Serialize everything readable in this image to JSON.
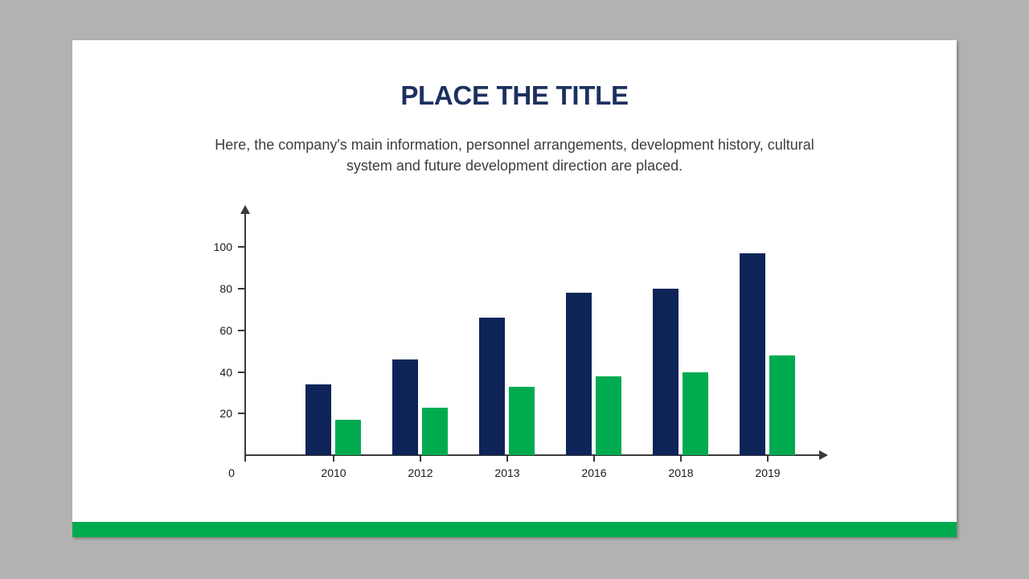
{
  "slide": {
    "title": "PLACE THE TITLE",
    "subtitle_lines": [
      "Here, the company's main information, personnel arrangements, development history, cultural",
      "system and future development direction are placed."
    ]
  },
  "colors": {
    "background": "#b2b2b2",
    "slide_background": "#ffffff",
    "title_text": "#1d3160",
    "body_text": "#3d3d3d",
    "axis": "#3a3a3a",
    "tick_label_text": "#1a1a1a",
    "series1": "#0e2459",
    "series2": "#00ab50",
    "accent_bar": "#00ab50"
  },
  "chart_data": {
    "type": "bar",
    "title": "",
    "xlabel": "",
    "ylabel": "",
    "categories": [
      "2010",
      "2012",
      "2013",
      "2016",
      "2018",
      "2019"
    ],
    "series": [
      {
        "name": "series-1-navy",
        "color": "#0e2459",
        "values": [
          34,
          46,
          66,
          78,
          80,
          97
        ]
      },
      {
        "name": "series-2-green",
        "color": "#00ab50",
        "values": [
          17,
          23,
          33,
          38,
          40,
          48
        ]
      }
    ],
    "y_ticks": [
      20,
      40,
      60,
      80,
      100
    ],
    "ylim": [
      0,
      116
    ],
    "origin_label": "0",
    "grid": false,
    "legend": false,
    "axis_arrows": true
  }
}
